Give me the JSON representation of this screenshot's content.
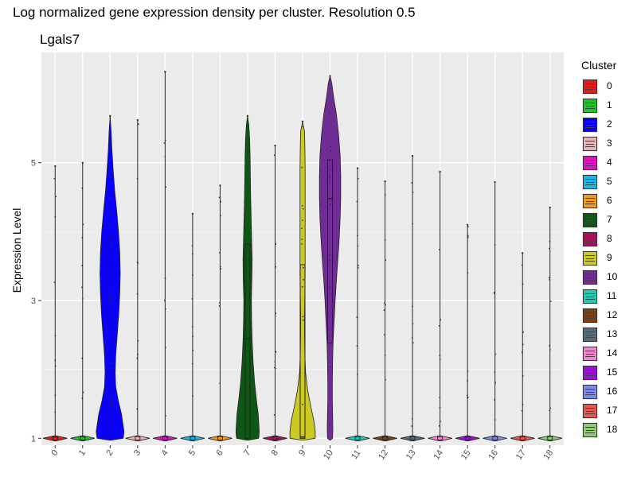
{
  "title": "Log normalized gene expression density per cluster. Resolution 0.5",
  "subtitle": "Lgals7",
  "legend": {
    "title": "Cluster"
  },
  "chart_data": {
    "type": "violin",
    "ylabel": "Expression Level",
    "xlabel": "",
    "ylim": [
      0.9,
      6.6
    ],
    "yticks": [
      1,
      3,
      5
    ],
    "grid": true,
    "legend_position": "right",
    "categories": [
      "0",
      "1",
      "2",
      "3",
      "4",
      "5",
      "6",
      "7",
      "8",
      "9",
      "10",
      "11",
      "12",
      "13",
      "14",
      "15",
      "16",
      "17",
      "18"
    ],
    "colors": [
      "#E41A1C",
      "#22C32B",
      "#0A00FF",
      "#E7B5B5",
      "#E20FC9",
      "#1CB7E8",
      "#F19A1C",
      "#0E5715",
      "#A6125A",
      "#CCC824",
      "#6F2D94",
      "#1ECDB5",
      "#7A4017",
      "#566C7B",
      "#EF88CF",
      "#9B12D9",
      "#7F8BEB",
      "#E55A4E",
      "#8ECB74"
    ],
    "series": [
      {
        "name": "0",
        "max": 4.95,
        "profile": "spike"
      },
      {
        "name": "1",
        "max": 5.0,
        "profile": "spike"
      },
      {
        "name": "2",
        "max": 5.68,
        "q1": 1.0,
        "median": 3.05,
        "q3": 3.92,
        "profile": "broad2"
      },
      {
        "name": "3",
        "max": 5.62,
        "profile": "spike"
      },
      {
        "name": "4",
        "max": 6.32,
        "profile": "spike"
      },
      {
        "name": "5",
        "max": 4.26,
        "profile": "spike"
      },
      {
        "name": "6",
        "max": 4.67,
        "profile": "spike"
      },
      {
        "name": "7",
        "max": 5.68,
        "q1": 1.0,
        "median": 2.45,
        "q3": 3.82,
        "profile": "broad7"
      },
      {
        "name": "8",
        "max": 5.25,
        "profile": "spike"
      },
      {
        "name": "9",
        "max": 5.6,
        "q1": 1.0,
        "median": 1.02,
        "q3": 3.52,
        "profile": "broad9"
      },
      {
        "name": "10",
        "max": 6.26,
        "q1": 2.38,
        "median": 4.48,
        "q3": 5.04,
        "profile": "broad10"
      },
      {
        "name": "11",
        "max": 4.92,
        "profile": "spike"
      },
      {
        "name": "12",
        "max": 4.73,
        "profile": "spike"
      },
      {
        "name": "13",
        "max": 5.1,
        "profile": "spike"
      },
      {
        "name": "14",
        "max": 4.87,
        "profile": "spike"
      },
      {
        "name": "15",
        "max": 4.1,
        "profile": "spike"
      },
      {
        "name": "16",
        "max": 4.72,
        "profile": "spike"
      },
      {
        "name": "17",
        "max": 3.69,
        "profile": "spike"
      },
      {
        "name": "18",
        "max": 4.35,
        "profile": "spike"
      }
    ]
  }
}
